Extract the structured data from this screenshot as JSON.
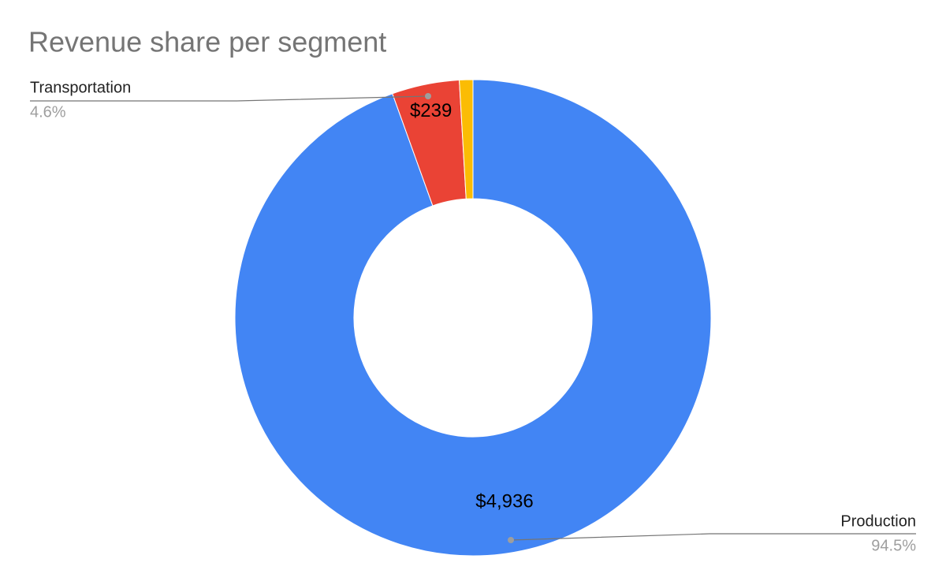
{
  "chart_data": {
    "type": "donut",
    "title": "Revenue share per segment",
    "categories": [
      "Production",
      "Transportation",
      null
    ],
    "values": [
      4936,
      239,
      48
    ],
    "value_labels": [
      "$4,936",
      "$239",
      null
    ],
    "percent_labels": [
      "94.5%",
      "4.6%",
      null
    ],
    "colors": [
      "#4285f4",
      "#ea4335",
      "#fbbc04"
    ]
  }
}
